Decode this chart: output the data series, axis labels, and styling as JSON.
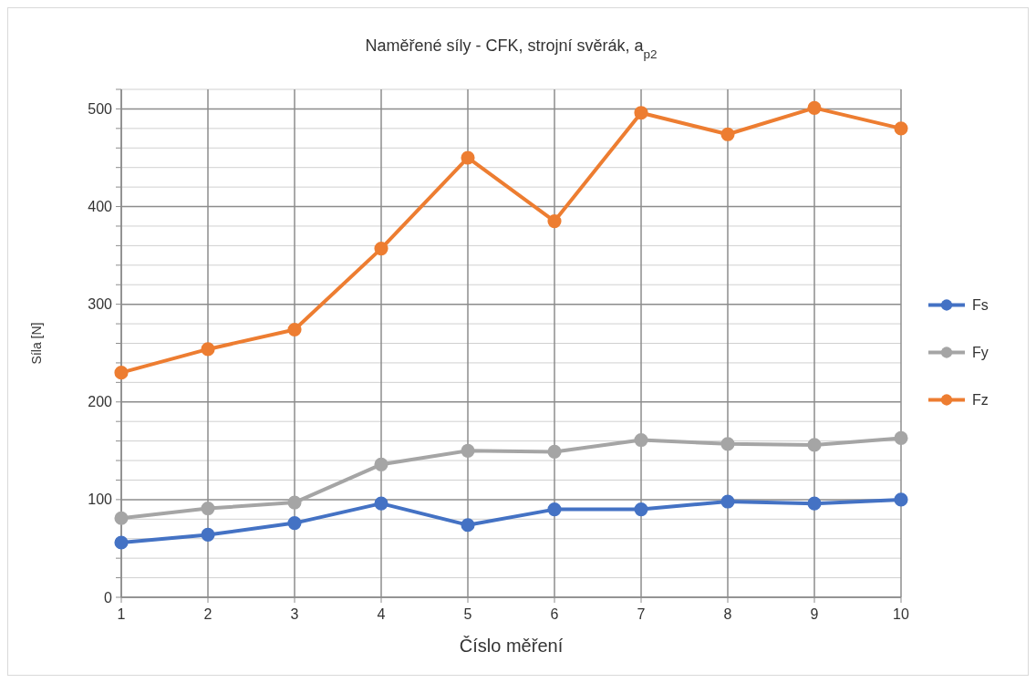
{
  "chart_data": {
    "type": "line",
    "title": "Naměřené síly - CFK, strojní svěrák, a$_{p2}$",
    "xlabel": "Číslo měření",
    "ylabel": "Síla [N]",
    "x": [
      1,
      2,
      3,
      4,
      5,
      6,
      7,
      8,
      9,
      10
    ],
    "xlim": [
      1,
      10
    ],
    "xticks": [
      1,
      2,
      3,
      4,
      5,
      6,
      7,
      8,
      9,
      10
    ],
    "ylim": [
      0,
      520
    ],
    "yticks": [
      0,
      {
        "value": 20,
        "label": null
      },
      {
        "value": 40,
        "label": null
      },
      {
        "value": 60,
        "label": null
      },
      {
        "value": 80,
        "label": null
      },
      100,
      {
        "value": 120,
        "label": null
      },
      {
        "value": 140,
        "label": null
      },
      {
        "value": 160,
        "label": null
      },
      {
        "value": 180,
        "label": null
      },
      200,
      {
        "value": 220,
        "label": null
      },
      {
        "value": 240,
        "label": null
      },
      {
        "value": 260,
        "label": null
      },
      {
        "value": 280,
        "label": null
      },
      300,
      {
        "value": 320,
        "label": null
      },
      {
        "value": 340,
        "label": null
      },
      {
        "value": 360,
        "label": null
      },
      {
        "value": 380,
        "label": null
      },
      400,
      {
        "value": 420,
        "label": null
      },
      {
        "value": 440,
        "label": null
      },
      {
        "value": 460,
        "label": null
      },
      {
        "value": 480,
        "label": null
      },
      500,
      {
        "value": 520,
        "label": null
      }
    ],
    "grid": true,
    "legend": "right",
    "marker": "circle",
    "line_style": "solid",
    "series": [
      {
        "name": "Fs",
        "color": "#4472c4",
        "values": [
          56,
          64,
          76,
          96,
          74,
          90,
          90,
          98,
          96,
          100
        ]
      },
      {
        "name": "Fy",
        "color": "#a5a5a5",
        "values": [
          81,
          91,
          97,
          136,
          150,
          149,
          161,
          157,
          156,
          163
        ]
      },
      {
        "name": "Fz",
        "color": "#ed7d31",
        "values": [
          230,
          254,
          274,
          357,
          450,
          385,
          496,
          474,
          501,
          480
        ]
      }
    ]
  }
}
